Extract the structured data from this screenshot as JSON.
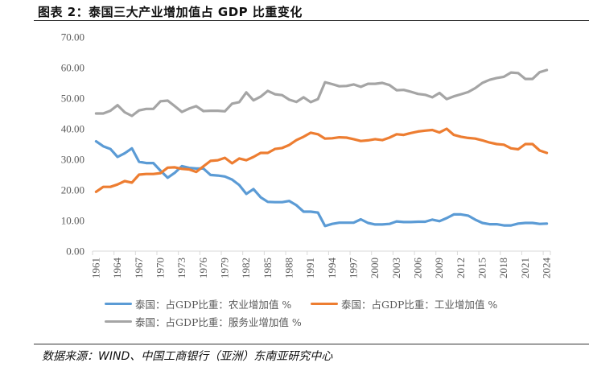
{
  "title": "图表 2：泰国三大产业增加值占 GDP 比重变化",
  "source": "数据来源：WIND、中国工商银行（亚洲）东南亚研究中心",
  "chart_data": {
    "type": "line",
    "title": "图表 2：泰国三大产业增加值占 GDP 比重变化",
    "xlabel": "",
    "ylabel": "",
    "ylim": [
      0,
      70
    ],
    "yticks": [
      "0.00",
      "10.00",
      "20.00",
      "30.00",
      "40.00",
      "50.00",
      "60.00",
      "70.00"
    ],
    "grid": false,
    "legend_position": "bottom",
    "x": [
      1961,
      1962,
      1963,
      1964,
      1965,
      1966,
      1967,
      1968,
      1969,
      1970,
      1971,
      1972,
      1973,
      1974,
      1975,
      1976,
      1977,
      1978,
      1979,
      1980,
      1981,
      1982,
      1983,
      1984,
      1985,
      1986,
      1987,
      1988,
      1989,
      1990,
      1991,
      1992,
      1993,
      1994,
      1995,
      1996,
      1997,
      1998,
      1999,
      2000,
      2001,
      2002,
      2003,
      2004,
      2005,
      2006,
      2007,
      2008,
      2009,
      2010,
      2011,
      2012,
      2013,
      2014,
      2015,
      2016,
      2017,
      2018,
      2019,
      2020,
      2021,
      2022,
      2023,
      2024
    ],
    "xtick_labels": [
      "1961",
      "1964",
      "1967",
      "1970",
      "1973",
      "1976",
      "1979",
      "1982",
      "1985",
      "1988",
      "1991",
      "1994",
      "1997",
      "2000",
      "2003",
      "2006",
      "2009",
      "2012",
      "2015",
      "2018",
      "2021",
      "2024"
    ],
    "series": [
      {
        "name": "泰国：占GDP比重：农业增加值 %",
        "color": "#5B9BD5",
        "values": [
          35.9,
          34.3,
          33.4,
          30.8,
          32.0,
          33.6,
          29.2,
          28.8,
          28.8,
          26.3,
          24.0,
          25.6,
          27.8,
          27.2,
          27.0,
          27.0,
          24.9,
          24.7,
          24.4,
          23.4,
          21.6,
          18.7,
          20.3,
          17.6,
          16.1,
          16.0,
          16.0,
          16.4,
          15.0,
          12.9,
          12.9,
          12.6,
          8.2,
          8.9,
          9.3,
          9.3,
          9.3,
          10.4,
          9.2,
          8.7,
          8.7,
          8.9,
          9.7,
          9.5,
          9.5,
          9.6,
          9.6,
          10.3,
          9.8,
          10.8,
          12.0,
          12.0,
          11.6,
          10.3,
          9.2,
          8.8,
          8.8,
          8.4,
          8.4,
          9.0,
          9.2,
          9.2,
          8.9,
          9.0
        ]
      },
      {
        "name": "泰国：占GDP比重：工业增加值 %",
        "color": "#ED7D31",
        "values": [
          19.4,
          21.0,
          21.0,
          21.8,
          22.9,
          22.4,
          25.0,
          25.2,
          25.2,
          25.5,
          27.3,
          27.4,
          26.9,
          26.7,
          25.9,
          27.7,
          29.5,
          29.7,
          30.5,
          28.7,
          30.3,
          29.7,
          30.8,
          32.1,
          32.1,
          33.4,
          33.7,
          34.7,
          36.3,
          37.4,
          38.7,
          38.2,
          36.8,
          36.9,
          37.2,
          37.1,
          36.6,
          36.0,
          36.2,
          36.6,
          36.3,
          37.1,
          38.2,
          38.0,
          38.6,
          39.1,
          39.4,
          39.6,
          38.8,
          40.0,
          38.0,
          37.4,
          37.0,
          36.8,
          36.2,
          35.5,
          35.0,
          34.8,
          33.6,
          33.3,
          35.0,
          35.0,
          32.9,
          32.1
        ]
      },
      {
        "name": "泰国：占GDP比重：服务业增加值 %",
        "color": "#A5A5A5",
        "values": [
          45.0,
          45.0,
          45.9,
          47.7,
          45.4,
          44.2,
          46.0,
          46.5,
          46.5,
          49.0,
          49.2,
          47.4,
          45.5,
          46.6,
          47.4,
          45.8,
          45.9,
          45.9,
          45.7,
          48.2,
          48.7,
          51.9,
          49.3,
          50.5,
          52.4,
          51.3,
          51.0,
          49.5,
          48.8,
          50.3,
          48.7,
          49.7,
          55.2,
          54.6,
          53.9,
          54.0,
          54.5,
          53.7,
          54.7,
          54.7,
          55.0,
          54.3,
          52.6,
          52.7,
          52.1,
          51.4,
          51.1,
          50.3,
          51.7,
          49.7,
          50.6,
          51.3,
          52.0,
          53.3,
          55.0,
          56.0,
          56.6,
          57.0,
          58.4,
          58.2,
          56.3,
          56.3,
          58.5,
          59.2
        ]
      }
    ]
  }
}
